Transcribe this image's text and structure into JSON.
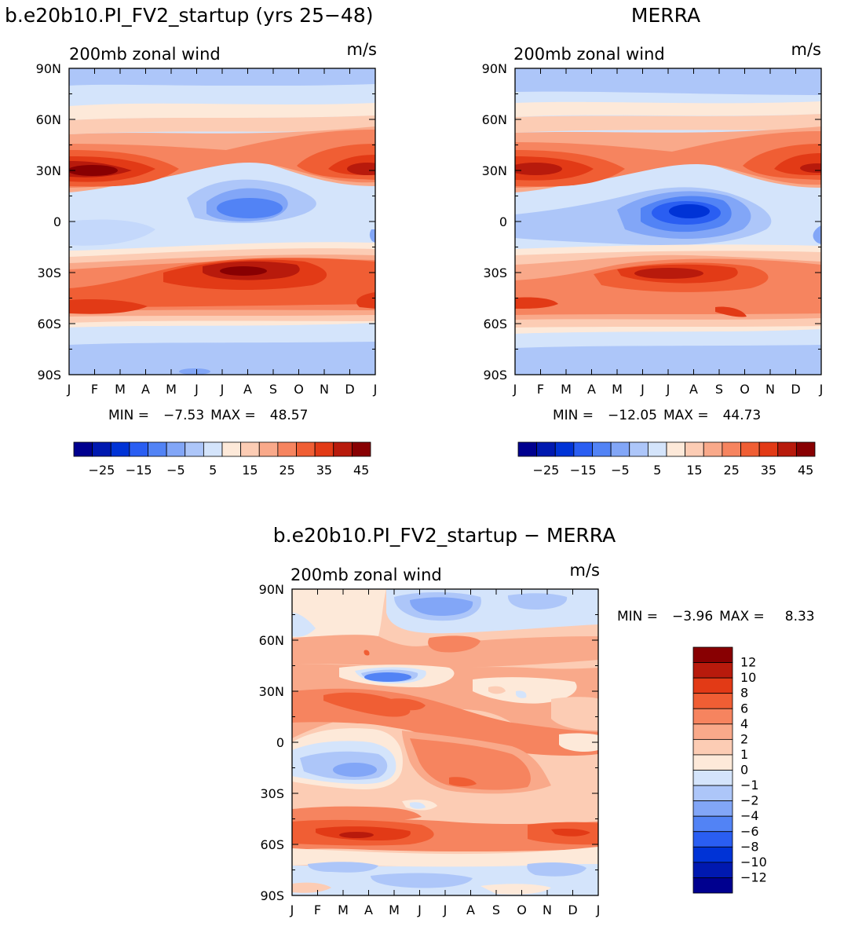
{
  "palette": [
    "#00008f",
    "#0019b0",
    "#0033d6",
    "#2a5ef2",
    "#5283f5",
    "#82a6f7",
    "#adc6f9",
    "#d4e4fb",
    "#fde9d9",
    "#fcccb4",
    "#f9a98a",
    "#f6845f",
    "#f05e34",
    "#e23a16",
    "#b81a0c",
    "#880002"
  ],
  "chart_data": [
    {
      "type": "heatmap",
      "title": "b.e20b10.PI_FV2_startup (yrs 25−48)",
      "subtitle_left": "200mb zonal wind",
      "subtitle_right": "m/s",
      "x": [
        "J",
        "F",
        "M",
        "A",
        "M",
        "J",
        "J",
        "A",
        "S",
        "O",
        "N",
        "D",
        "J"
      ],
      "y": [
        "90N",
        "60N",
        "30N",
        "0",
        "30S",
        "60S",
        "90S"
      ],
      "stats": {
        "min_label": "MIN =",
        "min": "−7.53",
        "max_label": "MAX =",
        "max": "48.57"
      },
      "colorbar_levels": [
        -30,
        -25,
        -20,
        -15,
        -10,
        -5,
        0,
        5,
        10,
        15,
        20,
        25,
        30,
        35,
        40,
        45
      ],
      "colorbar_labels": [
        "−25",
        "−15",
        "−5",
        "5",
        "15",
        "25",
        "35",
        "45"
      ]
    },
    {
      "type": "heatmap",
      "title": "MERRA",
      "subtitle_left": "200mb zonal wind",
      "subtitle_right": "m/s",
      "x": [
        "J",
        "F",
        "M",
        "A",
        "M",
        "J",
        "J",
        "A",
        "S",
        "O",
        "N",
        "D",
        "J"
      ],
      "y": [
        "90N",
        "60N",
        "30N",
        "0",
        "30S",
        "60S",
        "90S"
      ],
      "stats": {
        "min_label": "MIN =",
        "min": "−12.05",
        "max_label": "MAX =",
        "max": "44.73"
      },
      "colorbar_levels": [
        -30,
        -25,
        -20,
        -15,
        -10,
        -5,
        0,
        5,
        10,
        15,
        20,
        25,
        30,
        35,
        40,
        45
      ],
      "colorbar_labels": [
        "−25",
        "−15",
        "−5",
        "5",
        "15",
        "25",
        "35",
        "45"
      ]
    },
    {
      "type": "heatmap",
      "title": "b.e20b10.PI_FV2_startup − MERRA",
      "subtitle_left": "200mb zonal wind",
      "subtitle_right": "m/s",
      "x": [
        "J",
        "F",
        "M",
        "A",
        "M",
        "J",
        "J",
        "A",
        "S",
        "O",
        "N",
        "D",
        "J"
      ],
      "y": [
        "90N",
        "60N",
        "30N",
        "0",
        "30S",
        "60S",
        "90S"
      ],
      "stats": {
        "min_label": "MIN =",
        "min": "−3.96",
        "max_label": "MAX =",
        "max": "8.33"
      },
      "colorbar_levels": [
        12,
        10,
        8,
        6,
        4,
        2,
        1,
        0,
        -1,
        -2,
        -4,
        -6,
        -8,
        -10,
        -12
      ],
      "colorbar_labels": [
        "12",
        "10",
        "8",
        "6",
        "4",
        "2",
        "1",
        "0",
        "−1",
        "−2",
        "−4",
        "−6",
        "−8",
        "−10",
        "−12"
      ]
    }
  ]
}
